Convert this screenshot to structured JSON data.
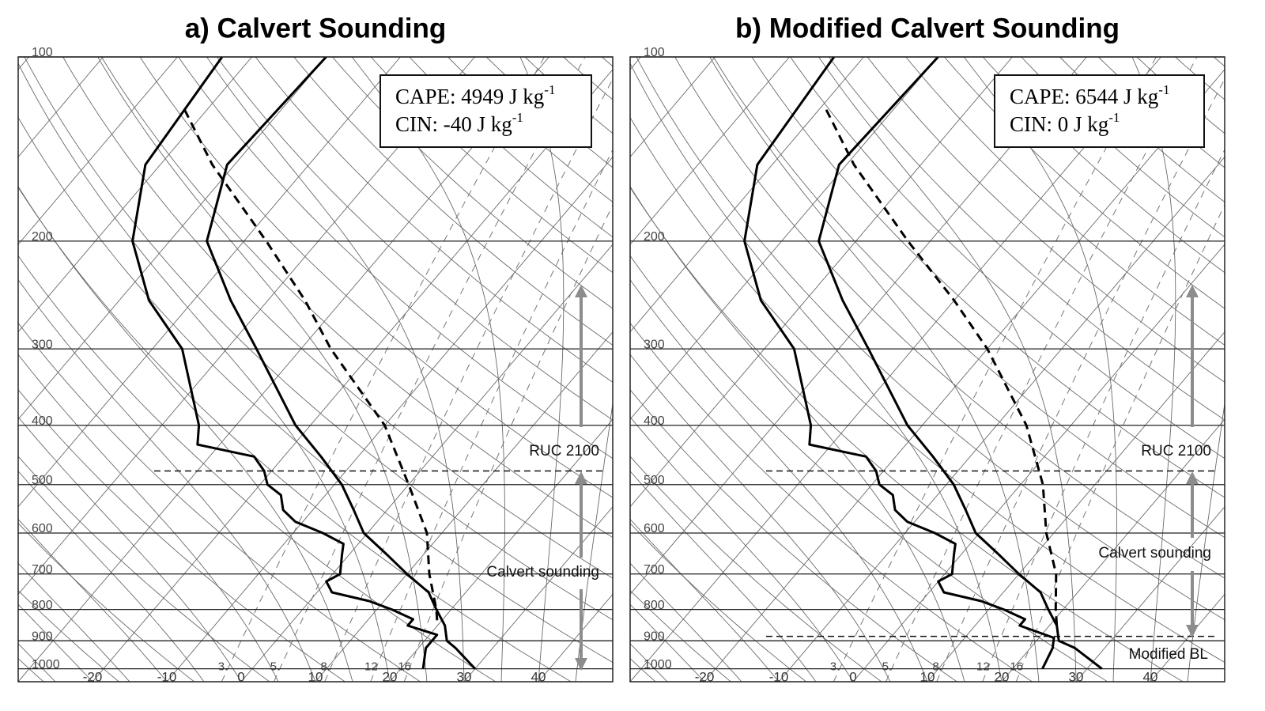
{
  "chart_data": [
    {
      "type": "skewt",
      "title": "a) Calvert Sounding",
      "cape": {
        "text": "CAPE: 4949 J kg",
        "sup": "-1"
      },
      "cin": {
        "text": "CIN: -40 J kg",
        "sup": "-1"
      },
      "annotations": [
        "RUC 2100",
        "Calvert sounding"
      ],
      "layer_lines": [
        475
      ],
      "ylim": [
        1050,
        100
      ],
      "ylog": true,
      "yticks": [
        100,
        200,
        300,
        400,
        500,
        600,
        700,
        800,
        900,
        1000
      ],
      "xlim": [
        -30,
        50
      ],
      "xticks": [
        -20,
        -10,
        0,
        10,
        20,
        30,
        40
      ],
      "mixing_ratios": [
        {
          "value": 3,
          "label": "3."
        },
        {
          "value": 5,
          "label": "5."
        },
        {
          "value": 8,
          "label": "8."
        },
        12,
        16
      ],
      "series": [
        {
          "color": "#000000",
          "style": "solid",
          "pressure": [
            100,
            150,
            200,
            250,
            300,
            400,
            450,
            500,
            550,
            600,
            650,
            700,
            750,
            800,
            850,
            900,
            925,
            1000
          ],
          "temperature": [
            -60,
            -61,
            -55,
            -45,
            -36,
            -22,
            -15,
            -9,
            -4.5,
            -0.5,
            5,
            10,
            15,
            18,
            21,
            23,
            25,
            30
          ]
        },
        {
          "color": "#000000",
          "style": "solid",
          "pressure": [
            100,
            150,
            200,
            250,
            300,
            400,
            430,
            450,
            475,
            500,
            520,
            550,
            575,
            600,
            625,
            650,
            700,
            720,
            750,
            775,
            800,
            830,
            850,
            880,
            900,
            925,
            1000
          ],
          "temperature": [
            -74,
            -72,
            -65,
            -56,
            -46,
            -35,
            -33,
            -24,
            -21,
            -19,
            -16,
            -14,
            -11,
            -6,
            -2,
            -1,
            1,
            0,
            2,
            8,
            12,
            16,
            16,
            21,
            21,
            21,
            23
          ]
        },
        {
          "color": "#000000",
          "style": "dashed",
          "pressure": [
            122,
            150,
            200,
            250,
            300,
            400,
            500,
            600,
            700,
            800,
            850
          ],
          "temperature": [
            -73,
            -63,
            -47,
            -35,
            -26,
            -10,
            0,
            8,
            13,
            18,
            20
          ]
        }
      ]
    },
    {
      "type": "skewt",
      "title": "b) Modified Calvert Sounding",
      "cape": {
        "text": "CAPE: 6544 J kg",
        "sup": "-1"
      },
      "cin": {
        "text": "CIN: 0 J kg",
        "sup": "-1"
      },
      "annotations": [
        "RUC 2100",
        "Calvert sounding",
        "Modified BL"
      ],
      "layer_lines": [
        475,
        885
      ],
      "ylim": [
        1050,
        100
      ],
      "ylog": true,
      "yticks": [
        100,
        200,
        300,
        400,
        500,
        600,
        700,
        800,
        900,
        1000
      ],
      "xlim": [
        -30,
        50
      ],
      "xticks": [
        -20,
        -10,
        0,
        10,
        20,
        30,
        40
      ],
      "mixing_ratios": [
        {
          "value": 3,
          "label": "3."
        },
        {
          "value": 5,
          "label": "5."
        },
        {
          "value": 8,
          "label": "8."
        },
        12,
        16
      ],
      "series": [
        {
          "color": "#000000",
          "style": "solid",
          "pressure": [
            100,
            150,
            200,
            250,
            300,
            400,
            450,
            500,
            550,
            600,
            650,
            700,
            750,
            800,
            850,
            900,
            925,
            1000
          ],
          "temperature": [
            -60,
            -61,
            -55,
            -45,
            -36,
            -22,
            -15,
            -9,
            -4.5,
            -0.5,
            5,
            10,
            15,
            18,
            21,
            23,
            26,
            32
          ]
        },
        {
          "color": "#000000",
          "style": "solid",
          "pressure": [
            100,
            150,
            200,
            250,
            300,
            400,
            430,
            450,
            475,
            500,
            520,
            550,
            575,
            600,
            625,
            650,
            700,
            720,
            750,
            775,
            800,
            830,
            850,
            890,
            925,
            1000
          ],
          "temperature": [
            -74,
            -72,
            -65,
            -56,
            -46,
            -35,
            -33,
            -24,
            -21,
            -19,
            -16,
            -14,
            -11,
            -6,
            -2,
            -1,
            1,
            0,
            2,
            8,
            12,
            16,
            16,
            22,
            23,
            24
          ]
        },
        {
          "color": "#000000",
          "style": "dashed",
          "pressure": [
            122,
            150,
            200,
            250,
            300,
            400,
            500,
            600,
            700,
            800,
            850
          ],
          "temperature": [
            -69,
            -59,
            -43,
            -30,
            -20,
            -6,
            3,
            9,
            15,
            19,
            21
          ]
        }
      ]
    }
  ]
}
